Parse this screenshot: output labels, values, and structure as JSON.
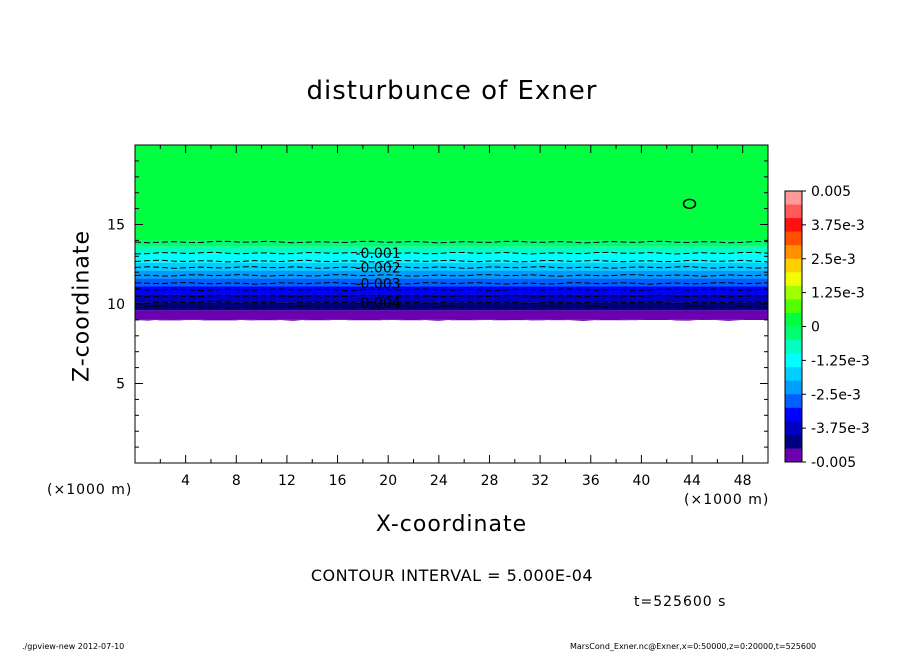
{
  "title": "disturbunce of Exner",
  "xlabel": "X-coordinate",
  "ylabel": "Z-coordinate",
  "x_unit_left": "(×1000 m)",
  "x_unit_right": "(×1000 m)",
  "contour_interval": "CONTOUR INTERVAL = 5.000E-04",
  "time": "t=525600 s",
  "footer_left": "./gpview-new  2012-07-10",
  "footer_right": "MarsCond_Exner.nc@Exner,x=0:50000,z=0:20000,t=525600",
  "chart_data": {
    "type": "heatmap",
    "title": "disturbunce of Exner",
    "xlabel": "X-coordinate",
    "ylabel": "Z-coordinate",
    "xlim": [
      0,
      50
    ],
    "ylim": [
      0,
      20
    ],
    "x_ticks": [
      4,
      8,
      12,
      16,
      20,
      24,
      28,
      32,
      36,
      40,
      44,
      48
    ],
    "y_ticks": [
      5,
      10,
      15
    ],
    "grid": false,
    "colorbar": {
      "placement": "right",
      "range": [
        -0.005,
        0.005
      ],
      "tick_labels": [
        "0.005",
        "3.75e-3",
        "2.5e-3",
        "1.25e-3",
        "0",
        "-1.25e-3",
        "-2.5e-3",
        "-3.75e-3",
        "-0.005"
      ],
      "colors_top_to_bottom": [
        "#ff9a9a",
        "#ff5a5a",
        "#ff1010",
        "#ff5000",
        "#ff9000",
        "#ffd000",
        "#f0ff00",
        "#a0ff00",
        "#50ff00",
        "#00ff40",
        "#00ff70",
        "#00ffc0",
        "#00ffff",
        "#00d0ff",
        "#009dff",
        "#0060ff",
        "#0000ff",
        "#0000c0",
        "#000080",
        "#6a00b0"
      ]
    },
    "filled_bands_below_z": [
      {
        "z_top": 20.0,
        "z_bottom": 14.0,
        "color": "#00ff40"
      },
      {
        "z_top": 14.0,
        "z_bottom": 13.6,
        "color": "#00ff70"
      },
      {
        "z_top": 13.6,
        "z_bottom": 13.2,
        "color": "#00ffc0"
      },
      {
        "z_top": 13.2,
        "z_bottom": 12.6,
        "color": "#00ffff"
      },
      {
        "z_top": 12.6,
        "z_bottom": 12.1,
        "color": "#00d0ff"
      },
      {
        "z_top": 12.1,
        "z_bottom": 11.6,
        "color": "#009dff"
      },
      {
        "z_top": 11.6,
        "z_bottom": 11.1,
        "color": "#0060ff"
      },
      {
        "z_top": 11.1,
        "z_bottom": 10.6,
        "color": "#0000ff"
      },
      {
        "z_top": 10.6,
        "z_bottom": 10.1,
        "color": "#0000c0"
      },
      {
        "z_top": 10.1,
        "z_bottom": 9.6,
        "color": "#000080"
      },
      {
        "z_top": 9.6,
        "z_bottom": 9.0,
        "color": "#6a00b0"
      }
    ],
    "contours": [
      {
        "z": 13.9,
        "label": ""
      },
      {
        "z": 13.2,
        "label": "-0.001"
      },
      {
        "z": 12.7,
        "label": ""
      },
      {
        "z": 12.3,
        "label": "-0.002"
      },
      {
        "z": 11.8,
        "label": ""
      },
      {
        "z": 11.3,
        "label": "-0.003"
      },
      {
        "z": 10.9,
        "label": ""
      },
      {
        "z": 10.5,
        "label": ""
      },
      {
        "z": 10.1,
        "label": "-0.004"
      },
      {
        "z": 9.8,
        "label": ""
      }
    ],
    "closed_contour": {
      "x": 43.8,
      "z": 16.3
    }
  }
}
